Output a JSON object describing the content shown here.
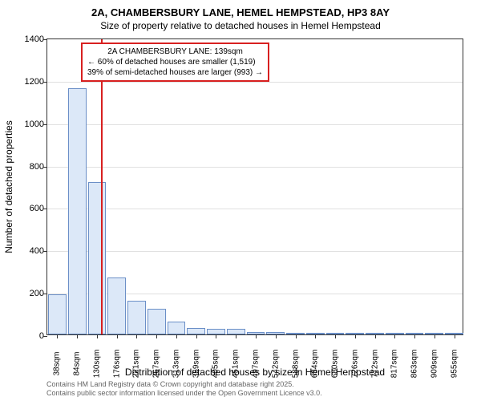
{
  "title": "2A, CHAMBERSBURY LANE, HEMEL HEMPSTEAD, HP3 8AY",
  "subtitle": "Size of property relative to detached houses in Hemel Hempstead",
  "chart": {
    "type": "bar",
    "ylabel": "Number of detached properties",
    "xlabel": "Distribution of detached houses by size in Hemel Hempstead",
    "ylim": [
      0,
      1400
    ],
    "ytick_step": 200,
    "yticks": [
      0,
      200,
      400,
      600,
      800,
      1000,
      1200,
      1400
    ],
    "background_color": "#ffffff",
    "grid_color": "#e0e0e0",
    "bar_fill": "#dce8f8",
    "bar_border": "#6b8fc7",
    "xticks": [
      "38sqm",
      "84sqm",
      "130sqm",
      "176sqm",
      "221sqm",
      "267sqm",
      "313sqm",
      "359sqm",
      "405sqm",
      "451sqm",
      "497sqm",
      "542sqm",
      "588sqm",
      "634sqm",
      "680sqm",
      "726sqm",
      "772sqm",
      "817sqm",
      "863sqm",
      "909sqm",
      "955sqm"
    ],
    "bars": [
      {
        "x": 0,
        "value": 190
      },
      {
        "x": 2,
        "value": 1160
      },
      {
        "x": 4,
        "value": 720
      },
      {
        "x": 6,
        "value": 270
      },
      {
        "x": 8,
        "value": 160
      },
      {
        "x": 10,
        "value": 120
      },
      {
        "x": 12,
        "value": 60
      },
      {
        "x": 14,
        "value": 32
      },
      {
        "x": 16,
        "value": 28
      },
      {
        "x": 18,
        "value": 25
      },
      {
        "x": 20,
        "value": 10
      },
      {
        "x": 22,
        "value": 10
      },
      {
        "x": 24,
        "value": 8
      },
      {
        "x": 26,
        "value": 6
      },
      {
        "x": 28,
        "value": 4
      },
      {
        "x": 30,
        "value": 4
      },
      {
        "x": 32,
        "value": 3
      },
      {
        "x": 34,
        "value": 3
      },
      {
        "x": 36,
        "value": 2
      },
      {
        "x": 38,
        "value": 2
      },
      {
        "x": 40,
        "value": 2
      }
    ],
    "vline": {
      "position_index": 4.4,
      "color": "#d82020"
    },
    "annotation": {
      "line1": "2A CHAMBERSBURY LANE: 139sqm",
      "line2": "← 60% of detached houses are smaller (1,519)",
      "line3": "39% of semi-detached houses are larger (993) →",
      "border_color": "#d82020",
      "x_index": 3.5,
      "y_value": 1340
    }
  },
  "footer": {
    "line1": "Contains HM Land Registry data © Crown copyright and database right 2025.",
    "line2": "Contains public sector information licensed under the Open Government Licence v3.0."
  }
}
